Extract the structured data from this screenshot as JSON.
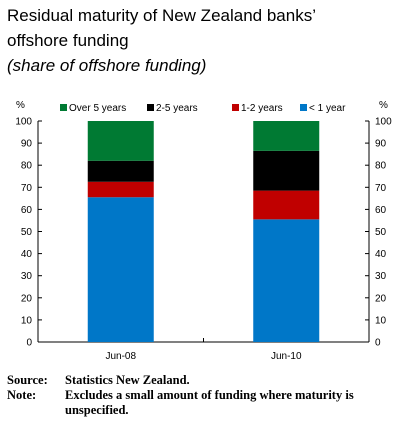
{
  "title_line1": "Residual maturity of New Zealand banks’",
  "title_line2": "offshore funding",
  "subtitle": "(share of offshore funding)",
  "chart_data": {
    "type": "bar",
    "stacked": true,
    "categories": [
      "Jun-08",
      "Jun-10"
    ],
    "series": [
      {
        "name": "< 1 year",
        "color": "#0077c8",
        "values": [
          65.5,
          55.5
        ]
      },
      {
        "name": "1-2 years",
        "color": "#c00000",
        "values": [
          7,
          13
        ]
      },
      {
        "name": "2-5 years",
        "color": "#000000",
        "values": [
          9.5,
          18
        ]
      },
      {
        "name": "Over 5 years",
        "color": "#007a33",
        "values": [
          18,
          13.5
        ]
      }
    ],
    "legend_order": [
      "Over 5 years",
      "2-5 years",
      "1-2 years",
      "< 1 year"
    ],
    "ylim": [
      0,
      100
    ],
    "yticks": [
      0,
      10,
      20,
      30,
      40,
      50,
      60,
      70,
      80,
      90,
      100
    ],
    "ylabel_left": "%",
    "ylabel_right": "%",
    "legend_position": "top",
    "grid": false
  },
  "footer": {
    "source_label": "Source:",
    "source_text": "Statistics New Zealand.",
    "note_label": "Note:",
    "note_text": "Excludes a small amount of funding where maturity is unspecified."
  }
}
